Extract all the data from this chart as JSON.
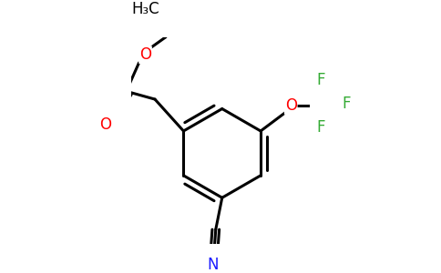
{
  "bg_color": "#ffffff",
  "bond_color": "#000000",
  "bond_width": 2.2,
  "atom_colors": {
    "O": "#ff0000",
    "N": "#1a1aff",
    "F": "#33aa33",
    "C": "#000000"
  },
  "font_size_atom": 12,
  "font_size_small": 11
}
